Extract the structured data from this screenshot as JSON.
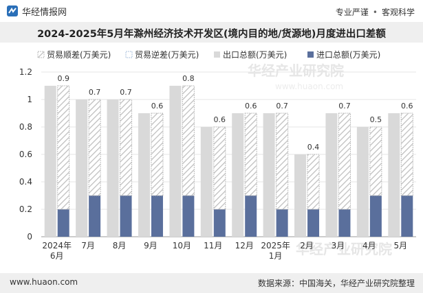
{
  "header": {
    "brand": "华经情报网",
    "tags": [
      "专业严谨",
      "客观科学"
    ]
  },
  "footer": {
    "site": "www.huaon.com",
    "source": "数据来源：中国海关，华经产业研究院整理"
  },
  "watermarks": [
    "华经产业研究院",
    "www.huaon.com"
  ],
  "colors": {
    "surplus": "#bdbdbd",
    "deficit": "#a9c2dd",
    "export": "#d9d9d9",
    "import": "#5a6f9c"
  },
  "chart_data": {
    "type": "bar",
    "title": "2024-2025年5月年滁州经济技术开发区(境内目的地/货源地)月度进出口差额",
    "categories": [
      "2024年\n6月",
      "7月",
      "8月",
      "9月",
      "10月",
      "11月",
      "12月",
      "2025年\n1月",
      "2月",
      "3月",
      "4月",
      "5月"
    ],
    "series": [
      {
        "name": "贸易顺差(万美元)",
        "values": [
          0.9,
          0.7,
          0.7,
          0.6,
          0.8,
          0.6,
          0.6,
          0.7,
          0.4,
          0.7,
          0.5,
          0.6
        ]
      },
      {
        "name": "贸易逆差(万美元)",
        "values": [
          null,
          null,
          null,
          null,
          null,
          null,
          null,
          null,
          null,
          null,
          null,
          null
        ]
      },
      {
        "name": "出口总额(万美元)",
        "values": [
          1.1,
          1.0,
          1.0,
          0.9,
          1.1,
          0.8,
          0.9,
          0.9,
          0.6,
          0.9,
          0.8,
          0.9
        ]
      },
      {
        "name": "进口总额(万美元)",
        "values": [
          0.2,
          0.3,
          0.3,
          0.3,
          0.3,
          0.2,
          0.3,
          0.2,
          0.2,
          0.2,
          0.3,
          0.3
        ]
      }
    ],
    "yticks": [
      "0",
      "0.2",
      "0.4",
      "0.6",
      "0.8",
      "1",
      "1.2"
    ],
    "ylim": [
      0,
      1.2
    ],
    "xlabel": "",
    "ylabel": "",
    "legend_position": "top-left"
  }
}
